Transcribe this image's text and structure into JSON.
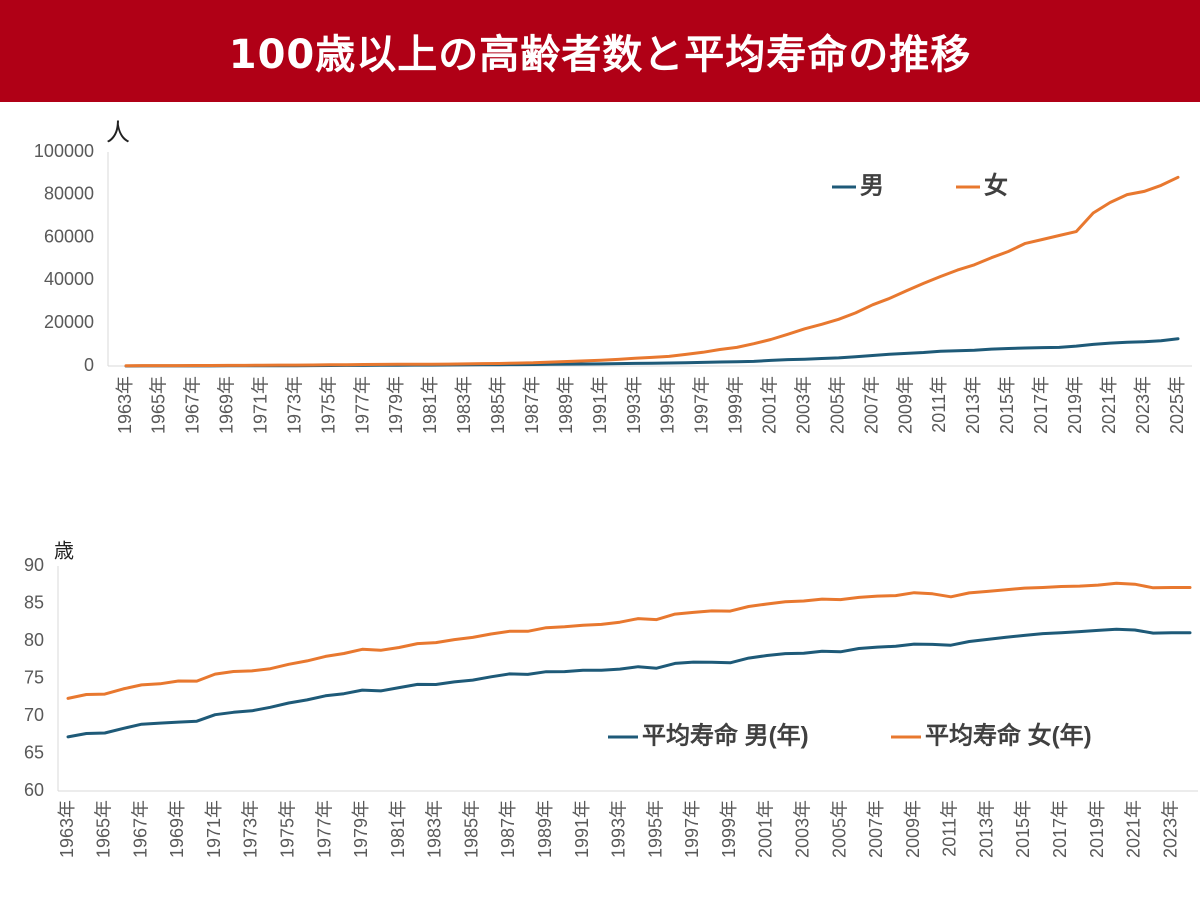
{
  "title": "100歳以上の高齢者数と平均寿命の推移",
  "colors": {
    "title_bg": "#b00016",
    "male": "#1e5a78",
    "female": "#e8782f",
    "axis": "#d9d9d9",
    "text": "#595959"
  },
  "chart_data": [
    {
      "type": "line",
      "unit_label": "人",
      "ylim": [
        0,
        100000
      ],
      "yticks": [
        0,
        20000,
        40000,
        60000,
        80000,
        100000
      ],
      "x_tick_labels": [
        "1963年",
        "1965年",
        "1967年",
        "1969年",
        "1971年",
        "1973年",
        "1975年",
        "1977年",
        "1979年",
        "1981年",
        "1983年",
        "1985年",
        "1987年",
        "1989年",
        "1991年",
        "1993年",
        "1995年",
        "1997年",
        "1999年",
        "2001年",
        "2003年",
        "2005年",
        "2007年",
        "2009年",
        "2011年",
        "2013年",
        "2015年",
        "2017年",
        "2019年",
        "2021年",
        "2023年",
        "2025年"
      ],
      "x": [
        1963,
        1964,
        1965,
        1966,
        1967,
        1968,
        1969,
        1970,
        1971,
        1972,
        1973,
        1974,
        1975,
        1976,
        1977,
        1978,
        1979,
        1980,
        1981,
        1982,
        1983,
        1984,
        1985,
        1986,
        1987,
        1988,
        1989,
        1990,
        1991,
        1992,
        1993,
        1994,
        1995,
        1996,
        1997,
        1998,
        1999,
        2000,
        2001,
        2002,
        2003,
        2004,
        2005,
        2006,
        2007,
        2008,
        2009,
        2010,
        2011,
        2012,
        2013,
        2014,
        2015,
        2016,
        2017,
        2018,
        2019,
        2020,
        2021,
        2022,
        2023,
        2024,
        2025
      ],
      "legend": "top-right",
      "series": [
        {
          "name": "男",
          "color": "#1e5a78",
          "values": [
            20,
            30,
            40,
            50,
            60,
            70,
            80,
            90,
            110,
            130,
            160,
            190,
            230,
            260,
            300,
            330,
            370,
            400,
            420,
            450,
            500,
            560,
            600,
            650,
            700,
            800,
            900,
            950,
            1000,
            1100,
            1200,
            1300,
            1400,
            1500,
            1700,
            1850,
            2000,
            2150,
            2600,
            3000,
            3200,
            3500,
            3800,
            4300,
            4900,
            5500,
            5900,
            6300,
            6900,
            7100,
            7400,
            7900,
            8200,
            8400,
            8600,
            8700,
            9300,
            10100,
            10700,
            11100,
            11300,
            11800,
            12700
          ]
        },
        {
          "name": "女",
          "color": "#e8782f",
          "values": [
            140,
            180,
            180,
            200,
            220,
            240,
            260,
            300,
            360,
            400,
            420,
            470,
            550,
            600,
            700,
            750,
            800,
            820,
            840,
            900,
            1000,
            1100,
            1150,
            1350,
            1500,
            1800,
            2100,
            2400,
            2700,
            3100,
            3600,
            4000,
            4500,
            5400,
            6400,
            7700,
            8700,
            10400,
            12400,
            14800,
            17400,
            19500,
            21800,
            24800,
            28600,
            31600,
            35200,
            38600,
            41800,
            44800,
            47300,
            50600,
            53500,
            57300,
            59100,
            61000,
            62800,
            71500,
            76400,
            80100,
            81600,
            84400,
            88200
          ]
        }
      ]
    },
    {
      "type": "line",
      "unit_label": "歳",
      "ylim": [
        60,
        90
      ],
      "yticks": [
        60,
        65,
        70,
        75,
        80,
        85,
        90
      ],
      "x_tick_labels": [
        "1963年",
        "1965年",
        "1967年",
        "1969年",
        "1971年",
        "1973年",
        "1975年",
        "1977年",
        "1979年",
        "1981年",
        "1983年",
        "1985年",
        "1987年",
        "1989年",
        "1991年",
        "1993年",
        "1995年",
        "1997年",
        "1999年",
        "2001年",
        "2003年",
        "2005年",
        "2007年",
        "2009年",
        "2011年",
        "2013年",
        "2015年",
        "2017年",
        "2019年",
        "2021年",
        "2023年"
      ],
      "x": [
        1963,
        1964,
        1965,
        1966,
        1967,
        1968,
        1969,
        1970,
        1971,
        1972,
        1973,
        1974,
        1975,
        1976,
        1977,
        1978,
        1979,
        1980,
        1981,
        1982,
        1983,
        1984,
        1985,
        1986,
        1987,
        1988,
        1989,
        1990,
        1991,
        1992,
        1993,
        1994,
        1995,
        1996,
        1997,
        1998,
        1999,
        2000,
        2001,
        2002,
        2003,
        2004,
        2005,
        2006,
        2007,
        2008,
        2009,
        2010,
        2011,
        2012,
        2013,
        2014,
        2015,
        2016,
        2017,
        2018,
        2019,
        2020,
        2021,
        2022,
        2023,
        2024
      ],
      "legend": "center-right",
      "series": [
        {
          "name": "平均寿命 男(年)",
          "color": "#1e5a78",
          "values": [
            67.21,
            67.67,
            67.74,
            68.35,
            68.91,
            69.05,
            69.18,
            69.31,
            70.17,
            70.5,
            70.7,
            71.16,
            71.73,
            72.15,
            72.69,
            72.97,
            73.46,
            73.35,
            73.79,
            74.22,
            74.2,
            74.54,
            74.78,
            75.23,
            75.61,
            75.54,
            75.91,
            75.92,
            76.11,
            76.09,
            76.25,
            76.57,
            76.38,
            77.01,
            77.19,
            77.16,
            77.1,
            77.72,
            78.07,
            78.32,
            78.36,
            78.64,
            78.56,
            79.0,
            79.19,
            79.29,
            79.59,
            79.55,
            79.44,
            79.94,
            80.21,
            80.5,
            80.75,
            80.98,
            81.09,
            81.25,
            81.41,
            81.56,
            81.47,
            81.05,
            81.09,
            81.09
          ]
        },
        {
          "name": "平均寿命 女(年)",
          "color": "#e8782f",
          "values": [
            72.34,
            72.87,
            72.92,
            73.61,
            74.15,
            74.3,
            74.67,
            74.66,
            75.58,
            75.94,
            76.02,
            76.31,
            76.89,
            77.35,
            77.95,
            78.33,
            78.89,
            78.76,
            79.13,
            79.66,
            79.78,
            80.18,
            80.48,
            80.93,
            81.3,
            81.3,
            81.77,
            81.9,
            82.11,
            82.22,
            82.51,
            82.98,
            82.85,
            83.59,
            83.82,
            84.01,
            83.99,
            84.6,
            84.93,
            85.23,
            85.33,
            85.59,
            85.52,
            85.81,
            85.99,
            86.05,
            86.44,
            86.3,
            85.9,
            86.41,
            86.61,
            86.83,
            87.05,
            87.14,
            87.26,
            87.32,
            87.45,
            87.71,
            87.57,
            87.09,
            87.14,
            87.13
          ]
        }
      ]
    }
  ]
}
